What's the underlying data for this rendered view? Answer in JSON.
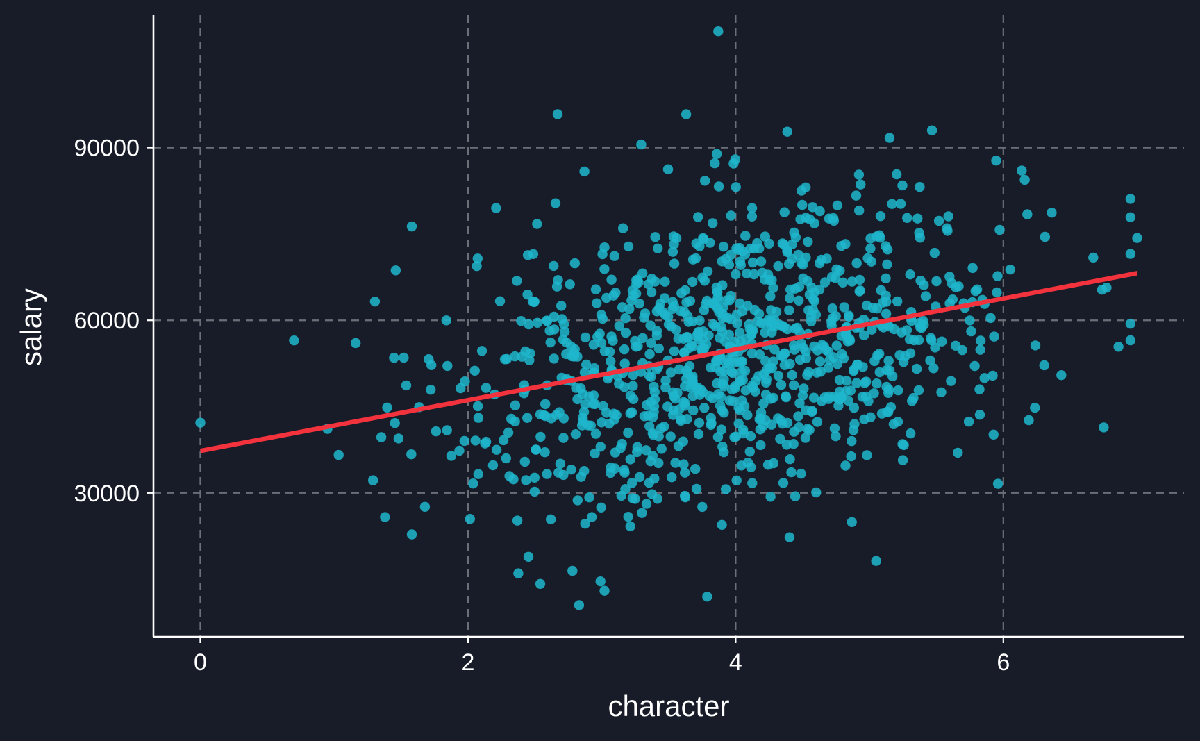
{
  "chart_data": {
    "type": "scatter",
    "xlabel": "character",
    "ylabel": "salary",
    "xlim": [
      -0.35,
      7.35
    ],
    "ylim": [
      5000,
      113000
    ],
    "x_ticks": [
      0,
      2,
      4,
      6
    ],
    "y_ticks": [
      30000,
      60000,
      90000
    ],
    "grid": true,
    "legend": "none",
    "n_points": 1000,
    "point_color": "#1fb6cc",
    "trend_color": "#f2323c",
    "background_color": "#171c28",
    "trendline": {
      "type": "linear",
      "x": [
        0,
        7
      ],
      "y": [
        37300,
        68200
      ]
    },
    "notable_points": [
      {
        "x": 0.0,
        "y": 42200
      },
      {
        "x": 3.87,
        "y": 110200
      },
      {
        "x": 2.67,
        "y": 95800
      },
      {
        "x": 3.63,
        "y": 95800
      },
      {
        "x": 2.83,
        "y": 10500
      },
      {
        "x": 3.02,
        "y": 13000
      },
      {
        "x": 2.54,
        "y": 14200
      },
      {
        "x": 7.0,
        "y": 74300
      },
      {
        "x": 6.86,
        "y": 55400
      },
      {
        "x": 6.75,
        "y": 41400
      },
      {
        "x": 0.7,
        "y": 56500
      },
      {
        "x": 1.58,
        "y": 76300
      },
      {
        "x": 1.58,
        "y": 22800
      },
      {
        "x": 1.38,
        "y": 25800
      },
      {
        "x": 5.05,
        "y": 18200
      },
      {
        "x": 5.96,
        "y": 31600
      },
      {
        "x": 5.15,
        "y": 91700
      },
      {
        "x": 2.21,
        "y": 79500
      }
    ]
  }
}
